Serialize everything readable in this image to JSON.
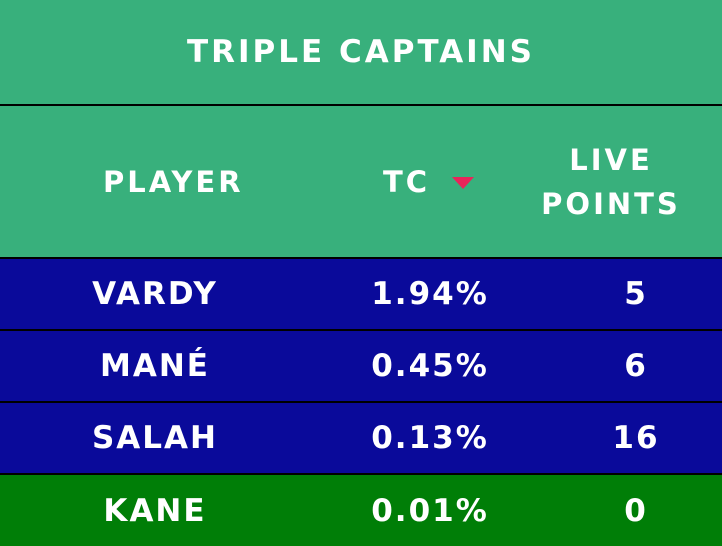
{
  "title": "TRIPLE CAPTAINS",
  "colors": {
    "header_bg": "#38b07c",
    "row_bg": "#0a0a9a",
    "highlight_row_bg": "#007e07",
    "sort_arrow": "#e8245a",
    "divider": "#000000"
  },
  "headers": {
    "player": "PLAYER",
    "tc": "TC",
    "tc_sort_icon": "sort-desc-triangle",
    "live_points_line1": "LIVE",
    "live_points_line2": "POINTS"
  },
  "rows": [
    {
      "player": "VARDY",
      "tc": "1.94%",
      "live_points": "5",
      "highlight": false
    },
    {
      "player": "MANÉ",
      "tc": "0.45%",
      "live_points": "6",
      "highlight": false
    },
    {
      "player": "SALAH",
      "tc": "0.13%",
      "live_points": "16",
      "highlight": false
    },
    {
      "player": "KANE",
      "tc": "0.01%",
      "live_points": "0",
      "highlight": true
    }
  ]
}
